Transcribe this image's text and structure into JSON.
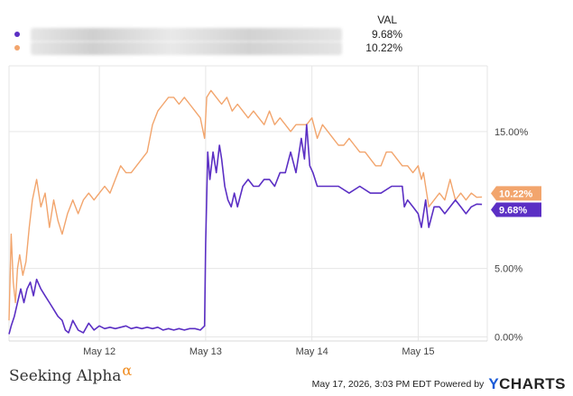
{
  "legend": {
    "header": "VAL",
    "series": [
      {
        "value": "9.68%",
        "color": "#5b2fc4"
      },
      {
        "value": "10.22%",
        "color": "#f2a56d"
      }
    ]
  },
  "chart_data": {
    "type": "line",
    "y_ticks": [
      "15.00%",
      "5.00%",
      "0.00%"
    ],
    "y_tick_values": [
      15,
      5,
      0
    ],
    "x_ticks": [
      "May 12",
      "May 13",
      "May 14",
      "May 15"
    ],
    "x_tick_positions": [
      0.85,
      1.85,
      2.85,
      3.85
    ],
    "x_range": [
      0,
      4.5
    ],
    "y_range": [
      -0.3,
      19.8
    ],
    "grid": "x and y lines",
    "end_labels": [
      "10.22%",
      "9.68%"
    ],
    "series": [
      {
        "color": "#f2a56d",
        "x": [
          0,
          0.02,
          0.04,
          0.06,
          0.08,
          0.1,
          0.13,
          0.16,
          0.19,
          0.22,
          0.26,
          0.3,
          0.34,
          0.38,
          0.42,
          0.46,
          0.5,
          0.55,
          0.6,
          0.65,
          0.7,
          0.75,
          0.8,
          0.85,
          0.9,
          0.95,
          1.0,
          1.05,
          1.1,
          1.15,
          1.2,
          1.25,
          1.3,
          1.35,
          1.4,
          1.45,
          1.5,
          1.55,
          1.6,
          1.65,
          1.7,
          1.75,
          1.8,
          1.84,
          1.86,
          1.9,
          1.95,
          2.0,
          2.05,
          2.1,
          2.15,
          2.2,
          2.25,
          2.3,
          2.35,
          2.4,
          2.45,
          2.5,
          2.55,
          2.6,
          2.65,
          2.7,
          2.75,
          2.8,
          2.85,
          2.9,
          2.95,
          3.0,
          3.05,
          3.1,
          3.15,
          3.2,
          3.25,
          3.3,
          3.35,
          3.4,
          3.45,
          3.5,
          3.55,
          3.6,
          3.65,
          3.7,
          3.75,
          3.8,
          3.85,
          3.88,
          3.9,
          3.95,
          4.0,
          4.05,
          4.1,
          4.15,
          4.2,
          4.25,
          4.3,
          4.35,
          4.4,
          4.45
        ],
        "y": [
          1.2,
          7.5,
          4.0,
          2.5,
          5.0,
          6.0,
          4.5,
          5.5,
          8.0,
          10.0,
          11.5,
          9.5,
          10.5,
          8.0,
          10.0,
          8.5,
          7.5,
          9.0,
          10.0,
          9.0,
          10.0,
          10.5,
          10.0,
          10.5,
          11.0,
          10.5,
          11.5,
          12.5,
          12.0,
          12.0,
          12.5,
          13.0,
          13.5,
          15.5,
          16.5,
          17.0,
          17.5,
          17.5,
          17.0,
          17.5,
          17.0,
          16.5,
          16.0,
          14.5,
          17.5,
          18.0,
          17.5,
          17.0,
          17.5,
          16.5,
          17.0,
          16.5,
          16.0,
          16.5,
          16.0,
          15.5,
          16.5,
          15.5,
          16.0,
          15.5,
          15.0,
          15.5,
          15.5,
          15.5,
          16.0,
          14.5,
          15.5,
          15.0,
          14.5,
          14.0,
          14.0,
          14.5,
          14.0,
          13.5,
          13.5,
          13.0,
          12.5,
          12.5,
          13.5,
          13.5,
          13.0,
          12.5,
          12.5,
          12.0,
          12.5,
          11.5,
          12.0,
          9.5,
          10.0,
          10.5,
          10.0,
          11.5,
          10.0,
          10.5,
          10.0,
          10.5,
          10.2,
          10.22
        ]
      },
      {
        "color": "#5b2fc4",
        "x": [
          0,
          0.02,
          0.05,
          0.08,
          0.11,
          0.14,
          0.17,
          0.2,
          0.23,
          0.26,
          0.3,
          0.34,
          0.38,
          0.42,
          0.46,
          0.5,
          0.53,
          0.56,
          0.6,
          0.65,
          0.7,
          0.75,
          0.8,
          0.85,
          0.9,
          0.95,
          1.0,
          1.05,
          1.1,
          1.15,
          1.2,
          1.25,
          1.3,
          1.35,
          1.4,
          1.45,
          1.5,
          1.55,
          1.6,
          1.65,
          1.7,
          1.75,
          1.8,
          1.84,
          1.85,
          1.87,
          1.89,
          1.92,
          1.95,
          1.98,
          2.0,
          2.03,
          2.06,
          2.09,
          2.12,
          2.15,
          2.2,
          2.25,
          2.3,
          2.35,
          2.4,
          2.45,
          2.5,
          2.55,
          2.6,
          2.65,
          2.7,
          2.75,
          2.78,
          2.8,
          2.83,
          2.86,
          2.9,
          2.95,
          3.0,
          3.1,
          3.2,
          3.3,
          3.4,
          3.5,
          3.6,
          3.7,
          3.72,
          3.75,
          3.8,
          3.85,
          3.88,
          3.92,
          3.95,
          4.0,
          4.05,
          4.1,
          4.15,
          4.2,
          4.25,
          4.3,
          4.35,
          4.4,
          4.45
        ],
        "y": [
          0.2,
          0.8,
          1.5,
          2.5,
          3.5,
          2.5,
          3.5,
          4.0,
          3.0,
          4.2,
          3.5,
          3.0,
          2.5,
          2.0,
          1.5,
          1.2,
          0.5,
          0.3,
          1.2,
          0.5,
          0.3,
          1.0,
          0.5,
          0.8,
          0.6,
          0.7,
          0.6,
          0.7,
          0.8,
          0.6,
          0.7,
          0.6,
          0.7,
          0.6,
          0.7,
          0.5,
          0.6,
          0.5,
          0.6,
          0.5,
          0.6,
          0.6,
          0.5,
          0.8,
          6.8,
          13.5,
          11.5,
          13.5,
          12.0,
          14.0,
          13.0,
          11.0,
          10.0,
          9.5,
          10.5,
          9.5,
          11.0,
          11.5,
          11.0,
          11.0,
          11.5,
          11.5,
          11.0,
          12.0,
          12.0,
          13.5,
          12.0,
          14.5,
          13.0,
          15.5,
          12.5,
          12.0,
          11.0,
          11.0,
          11.0,
          11.0,
          10.5,
          11.0,
          10.5,
          10.5,
          11.0,
          11.0,
          9.5,
          10.0,
          9.5,
          9.0,
          8.0,
          10.0,
          8.0,
          9.5,
          9.5,
          9.0,
          9.5,
          10.0,
          9.5,
          9.0,
          9.5,
          9.7,
          9.68
        ]
      }
    ]
  },
  "footer": {
    "logo_text": "Seeking Alpha",
    "logo_mark": "α",
    "timestamp_text": "May 17, 2026, 3:03 PM EDT Powered by",
    "ycharts_y": "Y",
    "ycharts_rest": "CHARTS"
  }
}
